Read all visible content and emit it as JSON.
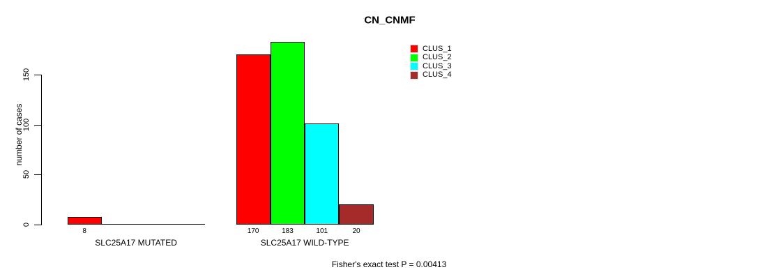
{
  "chart_data": {
    "type": "bar",
    "title": "CN_CNMF",
    "ylabel": "number of cases",
    "xlabel": "",
    "categories": [
      "SLC25A17 MUTATED",
      "SLC25A17 WILD-TYPE"
    ],
    "series": [
      {
        "name": "CLUS_1",
        "color": "#ff0000",
        "values": [
          8,
          170
        ]
      },
      {
        "name": "CLUS_2",
        "color": "#00ff00",
        "values": [
          0,
          183
        ]
      },
      {
        "name": "CLUS_3",
        "color": "#00ffff",
        "values": [
          0,
          101
        ]
      },
      {
        "name": "CLUS_4",
        "color": "#a52a2a",
        "values": [
          0,
          20
        ]
      }
    ],
    "bar_value_labels": [
      [
        "8",
        "",
        "",
        ""
      ],
      [
        "170",
        "183",
        "101",
        "20"
      ]
    ],
    "yticks": [
      "0",
      "50",
      "100",
      "150"
    ],
    "ytick_values": [
      0,
      50,
      100,
      150
    ],
    "ylim": [
      0,
      190
    ],
    "grid": false,
    "legend_position": "top-right",
    "bar_border_color": "#000000",
    "annotation": "Fisher's exact test P = 0.00413"
  }
}
